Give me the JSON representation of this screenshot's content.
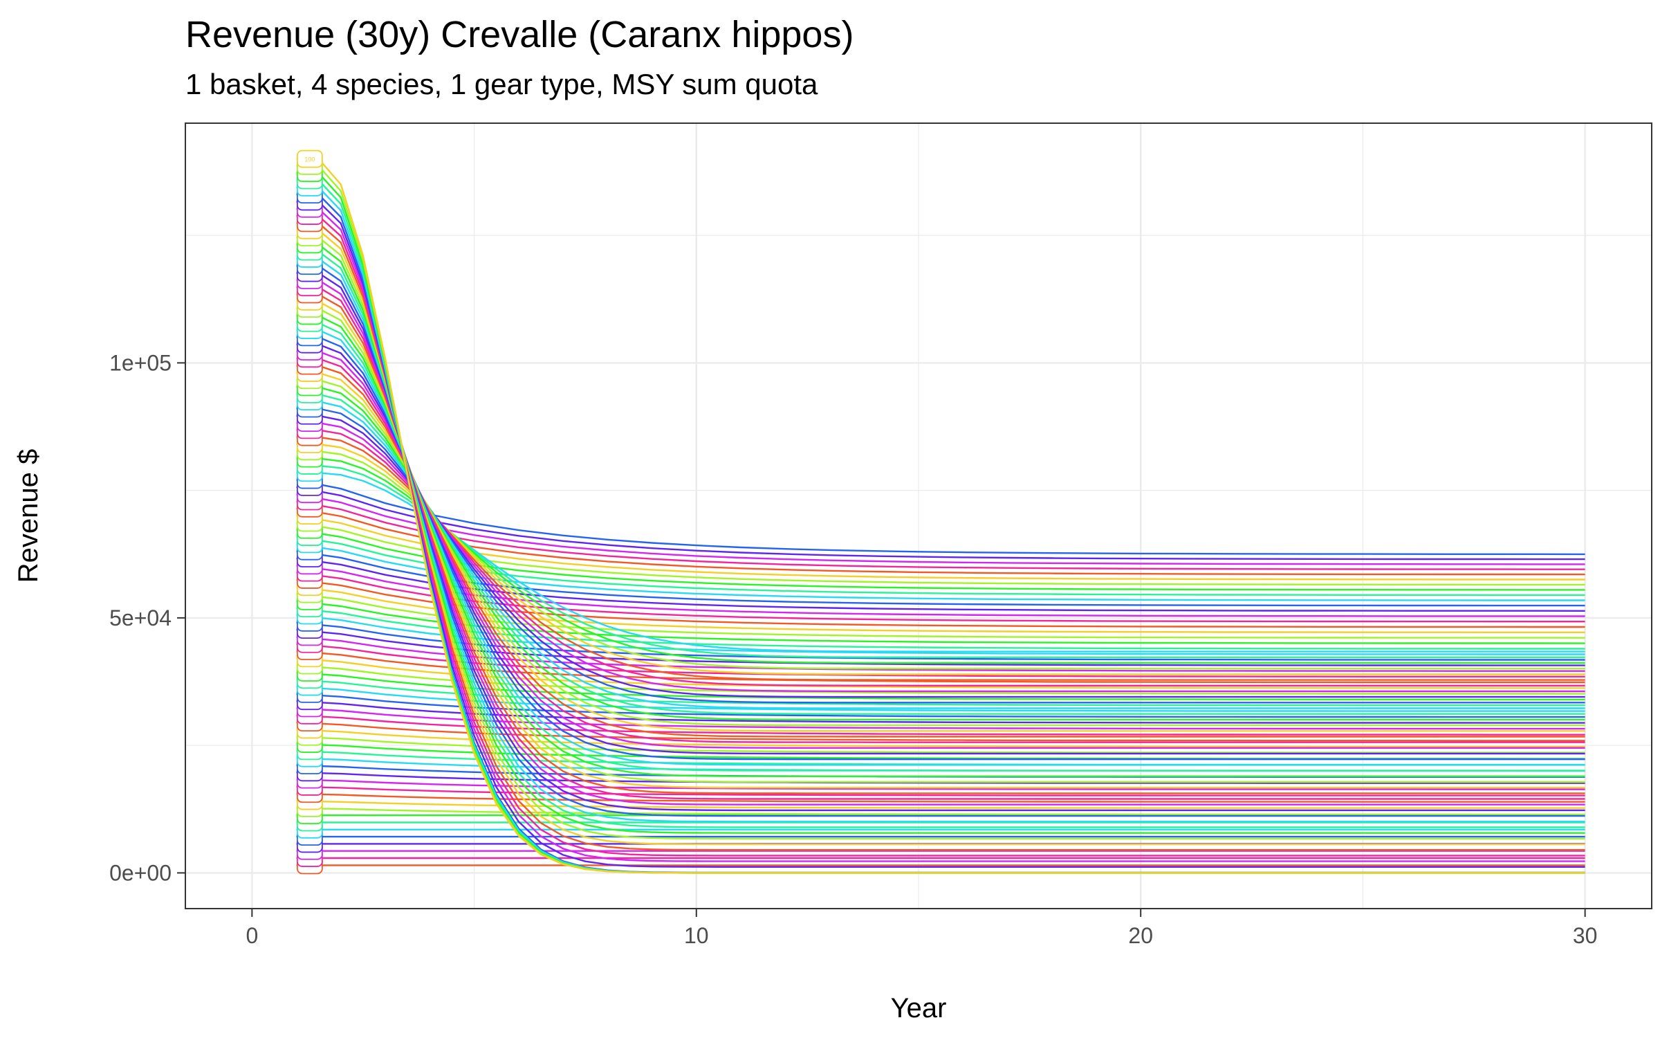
{
  "header": {
    "title": "Revenue (30y) Crevalle (Caranx hippos)",
    "subtitle": "1 basket, 4 species, 1 gear type, MSY sum quota"
  },
  "chart_data": {
    "type": "line",
    "xlabel": "Year",
    "ylabel": "Revenue $",
    "xlim": [
      -1.5,
      31.5
    ],
    "ylim": [
      -7000,
      147000
    ],
    "x_ticks": [
      0,
      10,
      20,
      30
    ],
    "x_tick_labels": [
      "0",
      "10",
      "20",
      "30"
    ],
    "y_ticks": [
      0,
      50000,
      100000
    ],
    "y_tick_labels": [
      "0e+00",
      "5e+04",
      "1e+05"
    ],
    "grid": true,
    "legend": "none",
    "colors": {
      "start": "#F8766D",
      "low_green": "#00BA38",
      "mid_blue": "#00A5FF",
      "high_pink": "#FF61C3",
      "gridline": "#ebebeb",
      "panel_border": "#333333"
    },
    "series_summary": {
      "count": 100,
      "label_x": 1.3,
      "top_label": "100",
      "x_range": [
        1,
        30
      ],
      "start_values_range": [
        1500,
        140000
      ],
      "notes_shape": "each run starts at a level and decays toward a long-run level"
    },
    "series": [
      {
        "name": "100",
        "x": [
          1,
          2,
          3,
          5,
          7,
          8,
          9,
          10,
          15,
          20,
          30
        ],
        "values": [
          136000,
          131000,
          110000,
          60000,
          12000,
          1800,
          300,
          60,
          0,
          0,
          0
        ]
      },
      {
        "name": "75",
        "x": [
          1,
          2,
          4,
          6,
          8,
          10,
          15,
          20,
          30
        ],
        "values": [
          106000,
          101000,
          88000,
          65000,
          44000,
          30000,
          12000,
          4000,
          500
        ]
      },
      {
        "name": "50",
        "x": [
          1,
          2,
          4,
          6,
          8,
          10,
          15,
          20,
          30
        ],
        "values": [
          76000,
          74000,
          66000,
          56000,
          50000,
          47000,
          44500,
          43800,
          44000
        ]
      },
      {
        "name": "30",
        "x": [
          1,
          2,
          5,
          10,
          20,
          30
        ],
        "values": [
          44000,
          43500,
          41000,
          38000,
          36000,
          35000
        ]
      },
      {
        "name": "10",
        "x": [
          1,
          2,
          5,
          10,
          20,
          30
        ],
        "values": [
          12000,
          12000,
          12000,
          12000,
          12000,
          12000
        ]
      },
      {
        "name": "1",
        "x": [
          1,
          2,
          10,
          20,
          30
        ],
        "values": [
          1500,
          1500,
          1500,
          1500,
          1500
        ]
      }
    ]
  }
}
